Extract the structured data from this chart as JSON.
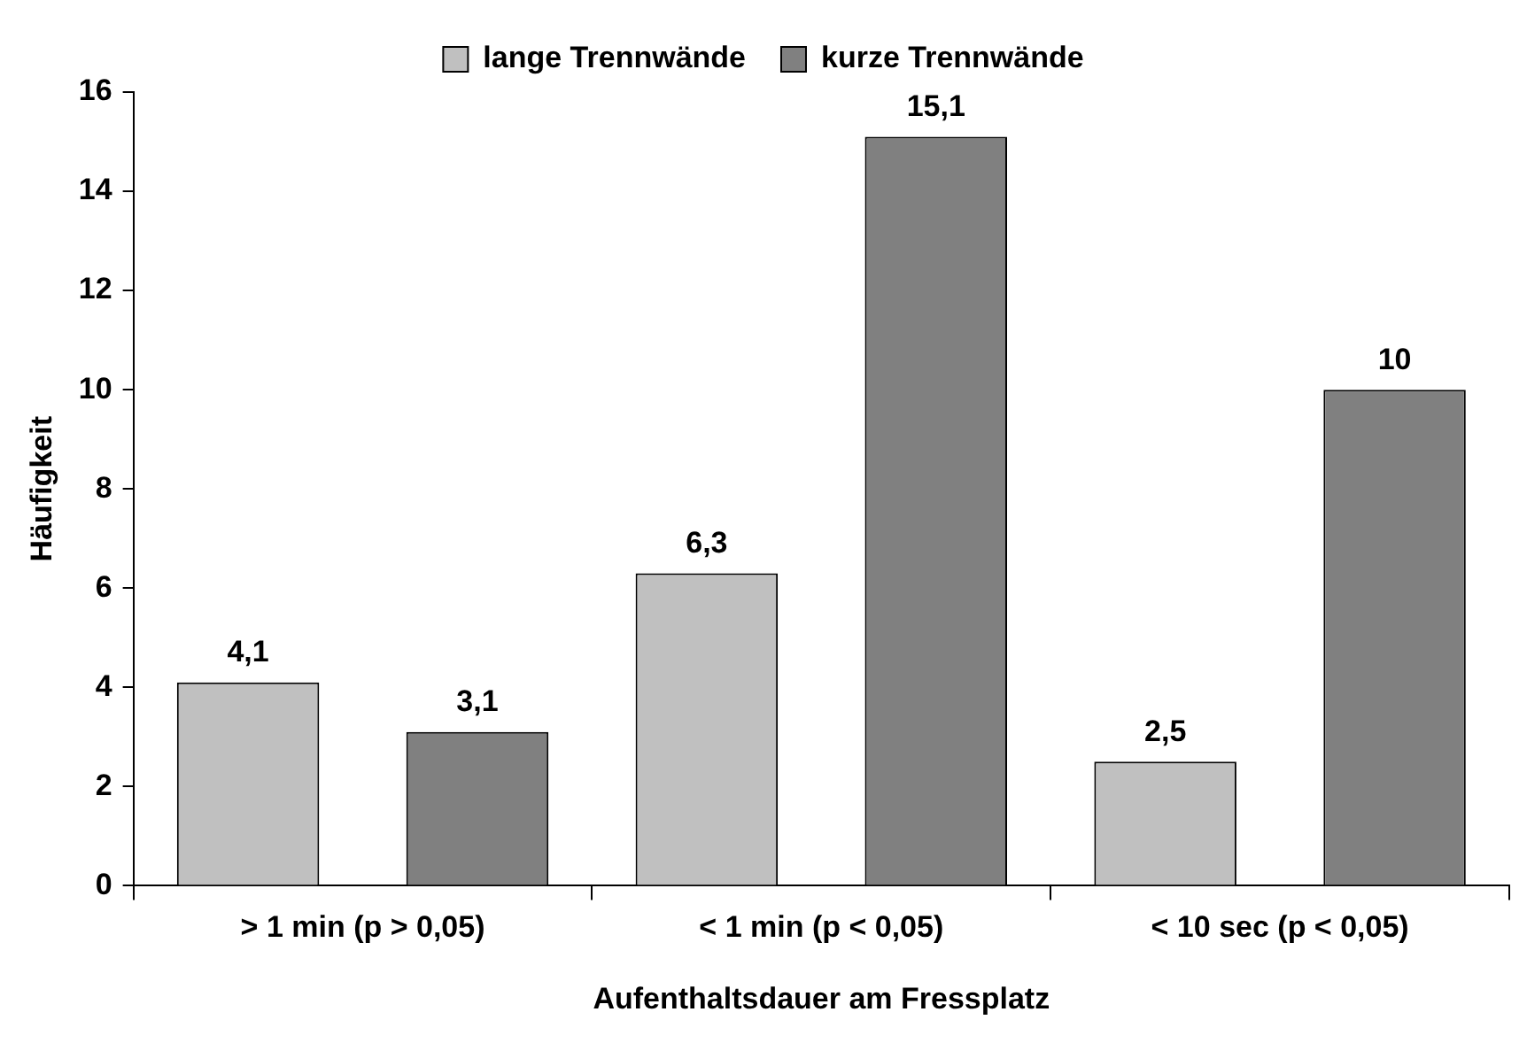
{
  "chart_data": {
    "type": "bar",
    "xlabel": "Aufenthaltsdauer am Fressplatz",
    "ylabel": "Häufigkeit",
    "categories": [
      "> 1 min (p > 0,05)",
      "< 1 min (p < 0,05)",
      "< 10 sec (p < 0,05)"
    ],
    "series": [
      {
        "name": "lange Trennwände",
        "color": "#c0c0c0",
        "values": [
          4.1,
          6.3,
          2.5
        ],
        "value_labels": [
          "4,1",
          "6,3",
          "2,5"
        ]
      },
      {
        "name": "kurze Trennwände",
        "color": "#808080",
        "values": [
          3.1,
          15.1,
          10
        ],
        "value_labels": [
          "3,1",
          "15,1",
          "10"
        ]
      }
    ],
    "ylim": [
      0,
      16
    ],
    "yticks": [
      0,
      2,
      4,
      6,
      8,
      10,
      12,
      14,
      16
    ],
    "grid": false,
    "legend": "top"
  }
}
